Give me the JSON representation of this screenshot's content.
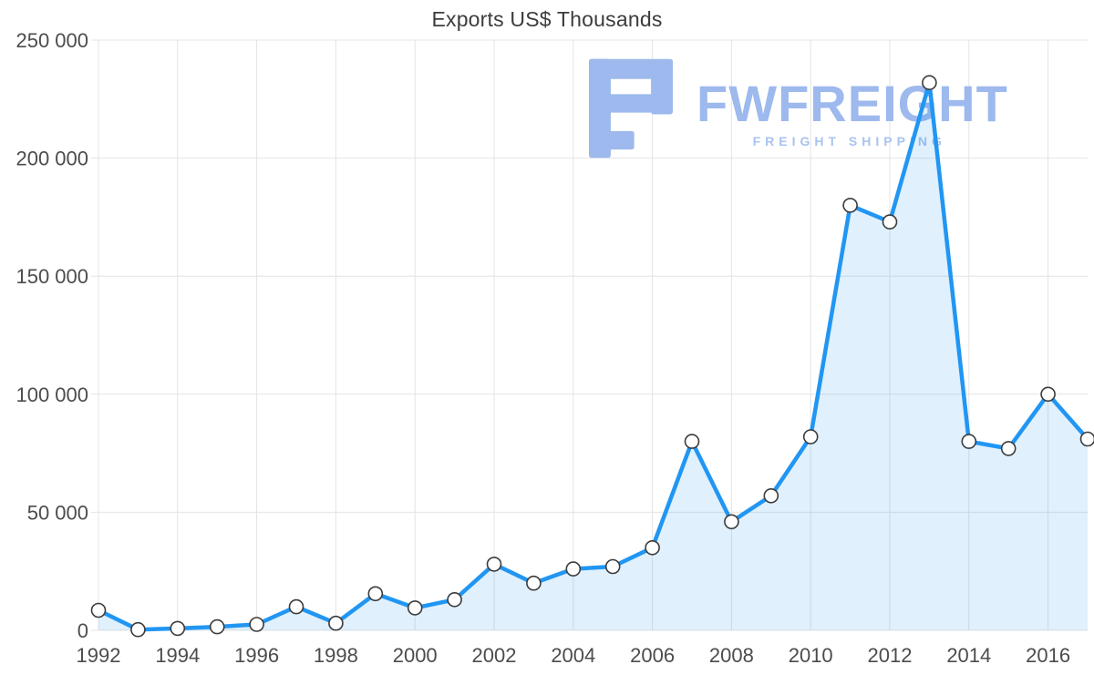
{
  "chart_data": {
    "type": "area",
    "title": "Exports US$ Thousands",
    "xlabel": "",
    "ylabel": "",
    "x": [
      1992,
      1993,
      1994,
      1995,
      1996,
      1997,
      1998,
      1999,
      2000,
      2001,
      2002,
      2003,
      2004,
      2005,
      2006,
      2007,
      2008,
      2009,
      2010,
      2011,
      2012,
      2013,
      2014,
      2015,
      2016,
      2017
    ],
    "values": [
      8500,
      300,
      800,
      1500,
      2500,
      10000,
      3000,
      15500,
      9500,
      13000,
      28000,
      20000,
      26000,
      27000,
      35000,
      80000,
      46000,
      57000,
      82000,
      180000,
      173000,
      232000,
      80000,
      77000,
      100000,
      81000
    ],
    "ylim": [
      0,
      250000
    ],
    "ytick_step": 50000,
    "ytick_labels": [
      "0",
      "50 000",
      "100 000",
      "150 000",
      "200 000",
      "250 000"
    ],
    "xtick_labels": [
      "1992",
      "1994",
      "1996",
      "1998",
      "2000",
      "2002",
      "2004",
      "2006",
      "2008",
      "2010",
      "2012",
      "2014",
      "2016"
    ],
    "grid": true,
    "legend": "none",
    "marker": "circle",
    "colors": {
      "line": "#2196f3",
      "fill": "rgba(33,150,243,0.14)",
      "marker_fill": "#ffffff",
      "marker_stroke": "#3b3b3b",
      "grid": "#e4e4e4",
      "axis_text": "#4c4c4c",
      "title_text": "#3c3c3c"
    }
  },
  "logo": {
    "text": "FWFREIGHT",
    "subtitle": "FREIGHT SHIPPING",
    "color": "#9db9ed",
    "subtitle_color": "#a9c3f0"
  }
}
